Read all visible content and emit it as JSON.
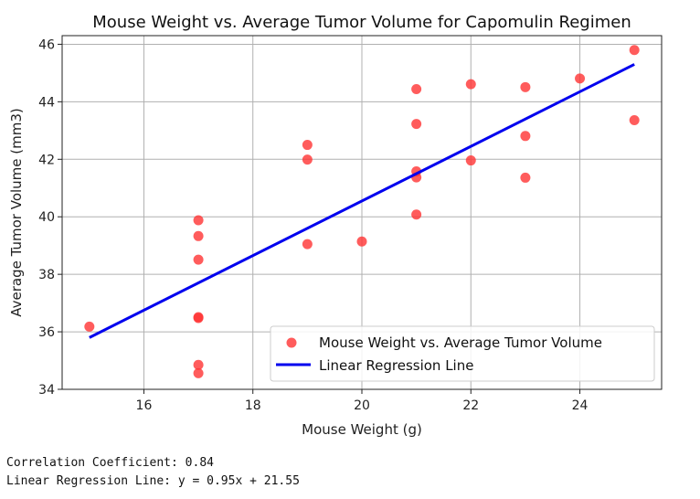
{
  "chart_data": {
    "type": "scatter",
    "title": "Mouse Weight vs. Average Tumor Volume for Capomulin Regimen",
    "xlabel": "Mouse Weight (g)",
    "ylabel": "Average Tumor Volume (mm3)",
    "xlim": [
      14.5,
      25.5
    ],
    "ylim": [
      34,
      46.3
    ],
    "xticks": [
      "16",
      "18",
      "20",
      "22",
      "24"
    ],
    "yticks": [
      "34",
      "36",
      "38",
      "40",
      "42",
      "44",
      "46"
    ],
    "grid": true,
    "legend_position": "lower-right",
    "series": [
      {
        "name": "Mouse Weight vs. Average Tumor Volume",
        "kind": "scatter",
        "color": "#ff3333",
        "points": [
          [
            15,
            36.18
          ],
          [
            17,
            39.88
          ],
          [
            17,
            39.33
          ],
          [
            17,
            38.51
          ],
          [
            17,
            36.51
          ],
          [
            17,
            36.48
          ],
          [
            17,
            34.85
          ],
          [
            17,
            34.56
          ],
          [
            19,
            42.5
          ],
          [
            19,
            41.99
          ],
          [
            19,
            39.05
          ],
          [
            20,
            39.14
          ],
          [
            21,
            44.44
          ],
          [
            21,
            43.23
          ],
          [
            21,
            41.58
          ],
          [
            21,
            41.37
          ],
          [
            21,
            40.08
          ],
          [
            22,
            44.61
          ],
          [
            22,
            41.96
          ],
          [
            23,
            44.51
          ],
          [
            23,
            42.81
          ],
          [
            23,
            41.36
          ],
          [
            24,
            44.81
          ],
          [
            25,
            45.8
          ],
          [
            25,
            43.36
          ]
        ]
      },
      {
        "name": "Linear Regression Line",
        "kind": "line",
        "color": "#0000ee",
        "slope": 0.95,
        "intercept": 21.55,
        "x_range": [
          15,
          25
        ]
      }
    ]
  },
  "output_lines": [
    "Correlation Coefficient: 0.84",
    "Linear Regression Line: y = 0.95x + 21.55"
  ]
}
